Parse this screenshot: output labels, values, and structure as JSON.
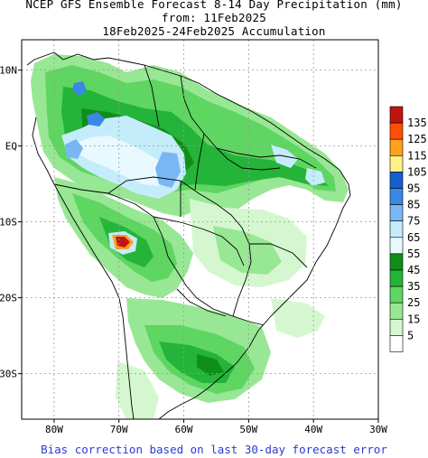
{
  "title": {
    "line1": "NCEP GFS Ensemble Forecast 8-14 Day Precipitation (mm)",
    "line2": "from: 11Feb2025",
    "line3": "18Feb2025-24Feb2025 Accumulation"
  },
  "axes": {
    "lat_ticks": [
      {
        "value": 10,
        "label": "10N"
      },
      {
        "value": 0,
        "label": "EQ"
      },
      {
        "value": -10,
        "label": "10S"
      },
      {
        "value": -20,
        "label": "20S"
      },
      {
        "value": -30,
        "label": "30S"
      }
    ],
    "lon_ticks": [
      {
        "value": -80,
        "label": "80W"
      },
      {
        "value": -70,
        "label": "70W"
      },
      {
        "value": -60,
        "label": "60W"
      },
      {
        "value": -50,
        "label": "50W"
      },
      {
        "value": -40,
        "label": "40W"
      },
      {
        "value": -30,
        "label": "30W"
      }
    ],
    "lat_range": [
      -36,
      14
    ],
    "lon_range": [
      -85,
      -30
    ]
  },
  "legend": {
    "units": "mm",
    "bins": [
      {
        "label": "135",
        "color": "#c0150f"
      },
      {
        "label": "125",
        "color": "#fe4e03"
      },
      {
        "label": "115",
        "color": "#fea020"
      },
      {
        "label": "105",
        "color": "#fff08a"
      },
      {
        "label": "95",
        "color": "#1460d0"
      },
      {
        "label": "85",
        "color": "#3a88e6"
      },
      {
        "label": "75",
        "color": "#78b7f4"
      },
      {
        "label": "65",
        "color": "#c5ecfb"
      },
      {
        "label": "55",
        "color": "#e8f9ff"
      },
      {
        "label": "45",
        "color": "#0f8e19"
      },
      {
        "label": "35",
        "color": "#25b43a"
      },
      {
        "label": "25",
        "color": "#5fd562"
      },
      {
        "label": "15",
        "color": "#98e794"
      },
      {
        "label": "5",
        "color": "#d5f7cf"
      },
      {
        "label": "",
        "color": "#ffffff"
      }
    ]
  },
  "footnote": "Bias correction based on last 30-day forecast error"
}
